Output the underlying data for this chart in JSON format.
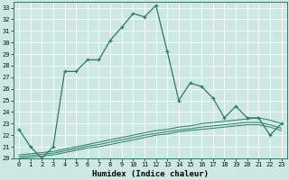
{
  "xlabel": "Humidex (Indice chaleur)",
  "background_color": "#cde8e0",
  "grid_color": "#b0d8d0",
  "line_color": "#2a7a6e",
  "xlim": [
    -0.5,
    23.5
  ],
  "ylim": [
    20,
    33.5
  ],
  "yticks": [
    20,
    21,
    22,
    23,
    24,
    25,
    26,
    27,
    28,
    29,
    30,
    31,
    32,
    33
  ],
  "xticks": [
    0,
    1,
    2,
    3,
    4,
    5,
    6,
    7,
    8,
    9,
    10,
    11,
    12,
    13,
    14,
    15,
    16,
    17,
    18,
    19,
    20,
    21,
    22,
    23
  ],
  "main_x": [
    0,
    1,
    2,
    3,
    4,
    5,
    6,
    7,
    8,
    9,
    10,
    11,
    12,
    13,
    14,
    15,
    16,
    17,
    18,
    19,
    20,
    21,
    22,
    23
  ],
  "main_y": [
    22.5,
    21.0,
    20.0,
    21.0,
    27.5,
    27.5,
    28.5,
    28.5,
    30.2,
    31.3,
    32.5,
    32.2,
    33.2,
    29.2,
    25.0,
    26.5,
    26.2,
    25.2,
    23.5,
    24.5,
    23.5,
    23.5,
    22.0,
    23.0
  ],
  "line2_x": [
    0,
    1,
    2,
    3,
    4,
    5,
    6,
    7,
    8,
    9,
    10,
    11,
    12,
    13,
    14,
    15,
    16,
    17,
    18,
    19,
    20,
    21,
    22,
    23
  ],
  "line2_y": [
    20.3,
    20.4,
    20.5,
    20.6,
    20.8,
    21.0,
    21.2,
    21.4,
    21.6,
    21.8,
    22.0,
    22.2,
    22.4,
    22.5,
    22.7,
    22.8,
    23.0,
    23.1,
    23.2,
    23.3,
    23.4,
    23.5,
    23.3,
    23.0
  ],
  "line3_x": [
    0,
    1,
    2,
    3,
    4,
    5,
    6,
    7,
    8,
    9,
    10,
    11,
    12,
    13,
    14,
    15,
    16,
    17,
    18,
    19,
    20,
    21,
    22,
    23
  ],
  "line3_y": [
    20.15,
    20.25,
    20.35,
    20.45,
    20.65,
    20.85,
    21.05,
    21.2,
    21.4,
    21.6,
    21.8,
    22.0,
    22.15,
    22.3,
    22.45,
    22.55,
    22.7,
    22.8,
    22.9,
    23.0,
    23.1,
    23.1,
    22.9,
    22.6
  ],
  "line4_x": [
    0,
    1,
    2,
    3,
    4,
    5,
    6,
    7,
    8,
    9,
    10,
    11,
    12,
    13,
    14,
    15,
    16,
    17,
    18,
    19,
    20,
    21,
    22,
    23
  ],
  "line4_y": [
    20.0,
    20.1,
    20.2,
    20.3,
    20.5,
    20.7,
    20.9,
    21.0,
    21.2,
    21.4,
    21.6,
    21.8,
    22.0,
    22.1,
    22.3,
    22.4,
    22.5,
    22.6,
    22.7,
    22.8,
    22.9,
    22.9,
    22.7,
    22.4
  ]
}
